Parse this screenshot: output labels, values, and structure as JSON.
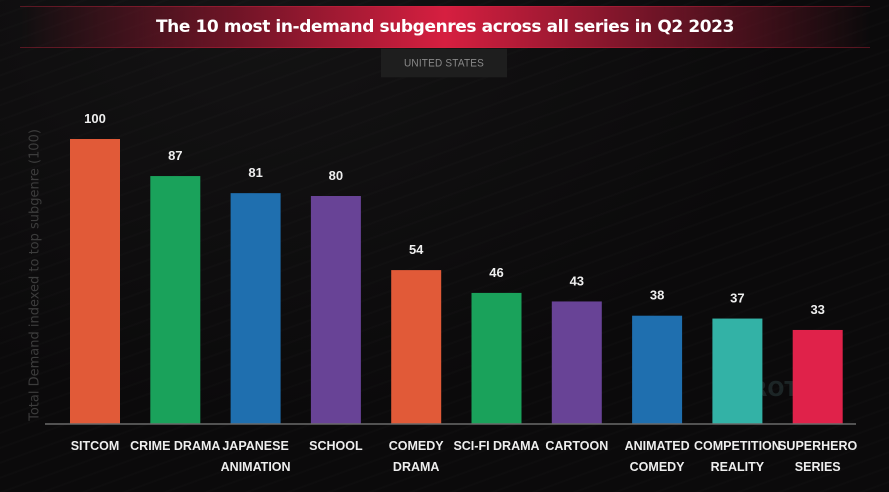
{
  "region_label": "UNITED STATES",
  "watermark": "PARROT ANALYTICS",
  "chart_data": {
    "type": "bar",
    "title": "The 10 most in-demand subgenres across all series in Q2 2023",
    "ylabel": "Total Demand indexed to top subgenre (100)",
    "xlabel": "",
    "ylim": [
      0,
      100
    ],
    "grid": false,
    "categories": [
      [
        "SITCOM"
      ],
      [
        "CRIME DRAMA"
      ],
      [
        "JAPANESE",
        "ANIMATION"
      ],
      [
        "SCHOOL"
      ],
      [
        "COMEDY",
        "DRAMA"
      ],
      [
        "SCI-FI DRAMA"
      ],
      [
        "CARTOON"
      ],
      [
        "ANIMATED",
        "COMEDY"
      ],
      [
        "COMPETITION",
        "REALITY"
      ],
      [
        "SUPERHERO",
        "SERIES"
      ]
    ],
    "values": [
      100,
      87,
      81,
      80,
      54,
      46,
      43,
      38,
      37,
      33
    ],
    "colors": [
      "#e15a38",
      "#1aa25b",
      "#1f6faf",
      "#684396",
      "#e15a38",
      "#1aa25b",
      "#684396",
      "#1f6faf",
      "#33b2a6",
      "#e0224a"
    ]
  }
}
